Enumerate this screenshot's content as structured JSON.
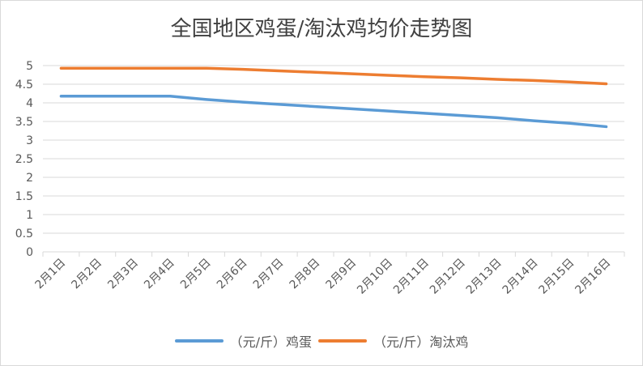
{
  "chart_data": {
    "type": "line",
    "title": "全国地区鸡蛋/淘汰鸡均价走势图",
    "xlabel": "",
    "ylabel": "",
    "categories": [
      "2月1日",
      "2月2日",
      "2月3日",
      "2月4日",
      "2月5日",
      "2月6日",
      "2月7日",
      "2月8日",
      "2月9日",
      "2月10日",
      "2月11日",
      "2月12日",
      "2月13日",
      "2月14日",
      "2月15日",
      "2月16日"
    ],
    "ylim": [
      0,
      5
    ],
    "yticks": [
      "0",
      "0.5",
      "1",
      "1.5",
      "2",
      "2.5",
      "3",
      "3.5",
      "4",
      "4.5",
      "5"
    ],
    "grid": true,
    "legend_position": "bottom",
    "series": [
      {
        "name": "（元/斤）鸡蛋",
        "color": "#5b9bd5",
        "values": [
          4.18,
          4.18,
          4.18,
          4.18,
          4.09,
          4.02,
          3.96,
          3.9,
          3.84,
          3.78,
          3.72,
          3.66,
          3.6,
          3.52,
          3.45,
          3.36
        ]
      },
      {
        "name": "（元/斤）淘汰鸡",
        "color": "#ed7d31",
        "values": [
          4.93,
          4.93,
          4.93,
          4.93,
          4.93,
          4.9,
          4.86,
          4.82,
          4.78,
          4.74,
          4.7,
          4.67,
          4.63,
          4.6,
          4.56,
          4.51
        ]
      }
    ]
  }
}
